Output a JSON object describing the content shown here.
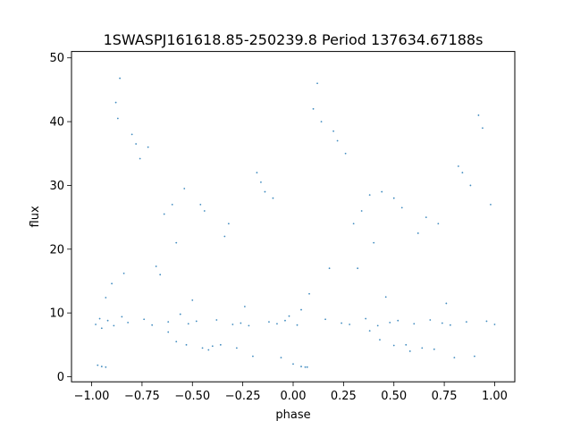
{
  "chart_data": {
    "type": "scatter",
    "title": "1SWASPJ161618.85-250239.8 Period 137634.67188s",
    "xlabel": "phase",
    "ylabel": "flux",
    "xlim": [
      -1.1,
      1.1
    ],
    "ylim": [
      -0.8,
      51.0
    ],
    "xticks": [
      -1.0,
      -0.75,
      -0.5,
      -0.25,
      0.0,
      0.25,
      0.5,
      0.75,
      1.0
    ],
    "xtick_labels": [
      "−1.00",
      "−0.75",
      "−0.50",
      "−0.25",
      "0.00",
      "0.25",
      "0.50",
      "0.75",
      "1.00"
    ],
    "yticks": [
      0,
      10,
      20,
      30,
      40,
      50
    ],
    "ytick_labels": [
      "0",
      "10",
      "20",
      "30",
      "40",
      "50"
    ],
    "grid": false,
    "marker_color": "#1f77b4",
    "series": [
      {
        "points": [
          [
            -0.98,
            8.2
          ],
          [
            -0.96,
            9.1
          ],
          [
            -0.95,
            7.6
          ],
          [
            -0.93,
            12.4
          ],
          [
            -0.92,
            8.8
          ],
          [
            -0.9,
            14.6
          ],
          [
            -0.89,
            8.0
          ],
          [
            -0.88,
            43.0
          ],
          [
            -0.87,
            40.5
          ],
          [
            -0.86,
            46.8
          ],
          [
            -0.85,
            9.4
          ],
          [
            -0.84,
            16.2
          ],
          [
            -0.82,
            8.5
          ],
          [
            -0.8,
            38.0
          ],
          [
            -0.78,
            36.5
          ],
          [
            -0.76,
            34.2
          ],
          [
            -0.74,
            9.0
          ],
          [
            -0.72,
            36.0
          ],
          [
            -0.7,
            8.1
          ],
          [
            -0.68,
            17.3
          ],
          [
            -0.66,
            16.0
          ],
          [
            -0.64,
            25.5
          ],
          [
            -0.62,
            8.6
          ],
          [
            -0.6,
            27.0
          ],
          [
            -0.58,
            21.0
          ],
          [
            -0.56,
            9.8
          ],
          [
            -0.54,
            29.5
          ],
          [
            -0.52,
            8.3
          ],
          [
            -0.5,
            12.0
          ],
          [
            -0.48,
            8.7
          ],
          [
            -0.46,
            27.0
          ],
          [
            -0.44,
            26.0
          ],
          [
            -0.42,
            4.2
          ],
          [
            -0.4,
            4.8
          ],
          [
            -0.38,
            8.9
          ],
          [
            -0.36,
            5.0
          ],
          [
            -0.34,
            22.0
          ],
          [
            -0.32,
            24.0
          ],
          [
            -0.3,
            8.2
          ],
          [
            -0.28,
            4.5
          ],
          [
            -0.26,
            8.4
          ],
          [
            -0.24,
            11.0
          ],
          [
            -0.22,
            8.0
          ],
          [
            -0.2,
            3.2
          ],
          [
            -0.18,
            32.0
          ],
          [
            -0.16,
            30.5
          ],
          [
            -0.14,
            29.0
          ],
          [
            -0.12,
            8.6
          ],
          [
            -0.1,
            28.0
          ],
          [
            -0.08,
            8.3
          ],
          [
            -0.06,
            3.0
          ],
          [
            -0.04,
            8.8
          ],
          [
            -0.02,
            9.5
          ],
          [
            0.0,
            2.0
          ],
          [
            0.02,
            8.1
          ],
          [
            0.04,
            10.5
          ],
          [
            0.06,
            1.5
          ],
          [
            0.08,
            13.0
          ],
          [
            0.1,
            42.0
          ],
          [
            0.12,
            46.0
          ],
          [
            0.14,
            40.0
          ],
          [
            0.16,
            9.0
          ],
          [
            0.18,
            17.0
          ],
          [
            0.2,
            38.5
          ],
          [
            0.22,
            37.0
          ],
          [
            0.24,
            8.4
          ],
          [
            0.26,
            35.0
          ],
          [
            0.28,
            8.2
          ],
          [
            0.3,
            24.0
          ],
          [
            0.32,
            17.0
          ],
          [
            0.34,
            26.0
          ],
          [
            0.36,
            9.1
          ],
          [
            0.38,
            28.5
          ],
          [
            0.4,
            21.0
          ],
          [
            0.42,
            8.0
          ],
          [
            0.44,
            29.0
          ],
          [
            0.46,
            12.5
          ],
          [
            0.48,
            8.5
          ],
          [
            0.5,
            28.0
          ],
          [
            0.52,
            8.8
          ],
          [
            0.54,
            26.5
          ],
          [
            0.56,
            5.0
          ],
          [
            0.58,
            4.0
          ],
          [
            0.6,
            8.3
          ],
          [
            0.62,
            22.5
          ],
          [
            0.64,
            4.5
          ],
          [
            0.66,
            25.0
          ],
          [
            0.68,
            8.9
          ],
          [
            0.7,
            4.3
          ],
          [
            0.72,
            24.0
          ],
          [
            0.74,
            8.4
          ],
          [
            0.76,
            11.5
          ],
          [
            0.78,
            8.1
          ],
          [
            0.8,
            3.0
          ],
          [
            0.82,
            33.0
          ],
          [
            0.84,
            32.0
          ],
          [
            0.86,
            8.6
          ],
          [
            0.88,
            30.0
          ],
          [
            0.9,
            3.2
          ],
          [
            0.92,
            41.0
          ],
          [
            0.94,
            39.0
          ],
          [
            0.96,
            8.7
          ],
          [
            0.98,
            27.0
          ],
          [
            1.0,
            8.2
          ],
          [
            -0.97,
            1.8
          ],
          [
            -0.95,
            1.6
          ],
          [
            -0.93,
            1.5
          ],
          [
            0.04,
            1.6
          ],
          [
            0.07,
            1.5
          ],
          [
            -0.62,
            7.0
          ],
          [
            -0.58,
            5.5
          ],
          [
            -0.53,
            5.0
          ],
          [
            -0.45,
            4.5
          ],
          [
            0.38,
            7.2
          ],
          [
            0.43,
            5.8
          ],
          [
            0.5,
            4.9
          ]
        ]
      }
    ]
  }
}
